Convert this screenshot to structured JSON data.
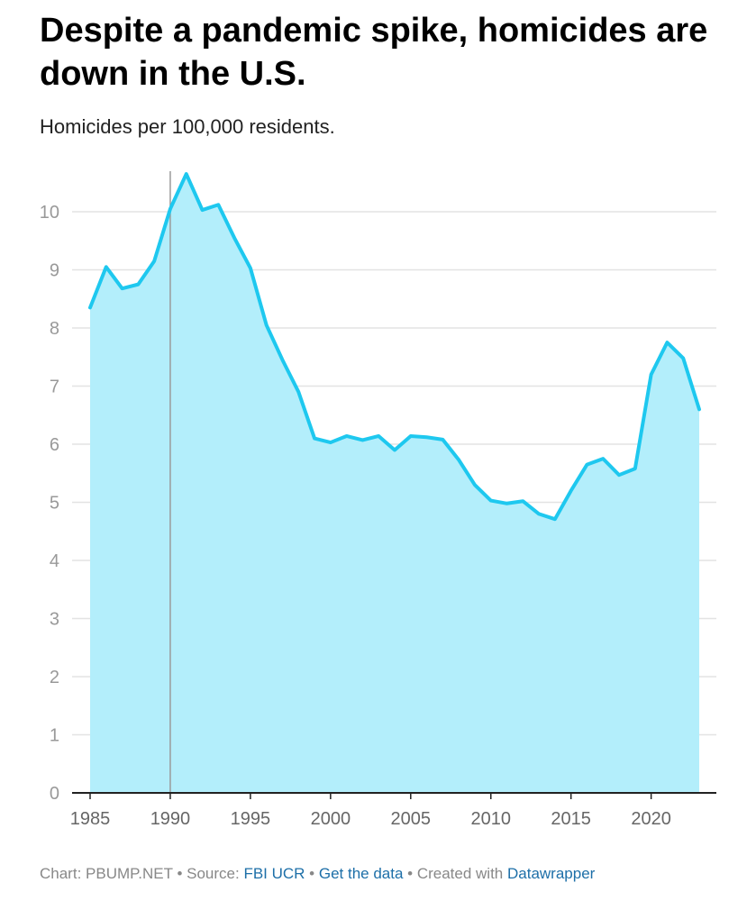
{
  "title": "Despite a pandemic spike, homicides are down in the U.S.",
  "subtitle": "Homicides per 100,000 residents.",
  "footer": {
    "chart_prefix": "Chart: ",
    "chart_by": "PBUMP.NET",
    "sep": " • ",
    "source_prefix": "Source: ",
    "source_link": "FBI UCR",
    "get_data": "Get the data",
    "created_prefix": "Created with ",
    "created_link": "Datawrapper"
  },
  "colors": {
    "line": "#1ec8ef",
    "area": "#b3eefb",
    "grid": "#e3e3e3",
    "axis": "#222222",
    "tick_label": "#999999",
    "marker": "#9a9a9a"
  },
  "chart_data": {
    "type": "area",
    "title": "Despite a pandemic spike, homicides are down in the U.S.",
    "subtitle": "Homicides per 100,000 residents.",
    "xlabel": "",
    "ylabel": "",
    "xlim": [
      1985,
      2023
    ],
    "ylim": [
      0,
      10
    ],
    "x_ticks": [
      1985,
      1990,
      1995,
      2000,
      2005,
      2010,
      2015,
      2020
    ],
    "y_ticks": [
      0,
      1,
      2,
      3,
      4,
      5,
      6,
      7,
      8,
      9,
      10
    ],
    "grid": true,
    "reference_line_x": 1990,
    "x": [
      1985,
      1986,
      1987,
      1988,
      1989,
      1990,
      1991,
      1992,
      1993,
      1994,
      1995,
      1996,
      1997,
      1998,
      1999,
      2000,
      2001,
      2002,
      2003,
      2004,
      2005,
      2006,
      2007,
      2008,
      2009,
      2010,
      2011,
      2012,
      2013,
      2014,
      2015,
      2016,
      2017,
      2018,
      2019,
      2020,
      2021,
      2022,
      2023
    ],
    "series": [
      {
        "values": [
          8.35,
          9.05,
          8.68,
          8.75,
          9.15,
          10.05,
          10.65,
          10.03,
          10.12,
          9.55,
          9.03,
          8.05,
          7.45,
          6.9,
          6.1,
          6.03,
          6.14,
          6.07,
          6.14,
          5.9,
          6.14,
          6.12,
          6.08,
          5.73,
          5.3,
          5.03,
          4.98,
          5.02,
          4.8,
          4.71,
          5.2,
          5.65,
          5.75,
          5.47,
          5.58,
          7.2,
          7.75,
          7.48,
          6.6
        ]
      }
    ]
  }
}
